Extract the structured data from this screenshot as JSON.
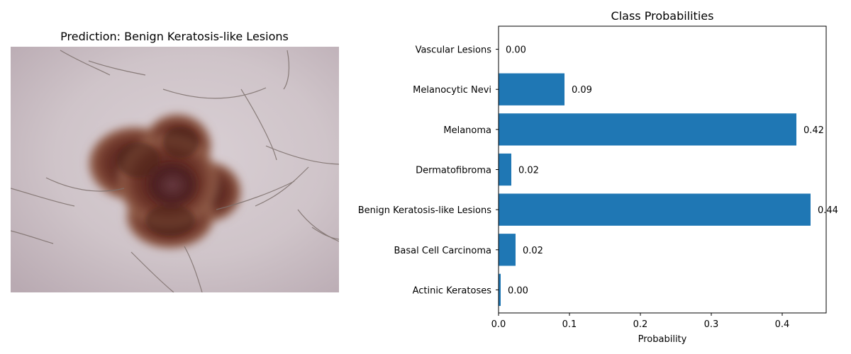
{
  "left_panel": {
    "title": "Prediction: Benign Keratosis-like Lesions",
    "image_icon": "dermoscopy-lesion-image"
  },
  "chart_data": {
    "type": "bar",
    "orientation": "horizontal",
    "title": "Class Probabilities",
    "xlabel": "Probability",
    "ylabel": "",
    "categories": [
      "Actinic Keratoses",
      "Basal Cell Carcinoma",
      "Benign Keratosis-like Lesions",
      "Dermatofibroma",
      "Melanoma",
      "Melanocytic Nevi",
      "Vascular Lesions"
    ],
    "values": [
      0.003,
      0.024,
      0.44,
      0.018,
      0.42,
      0.093,
      0.0
    ],
    "value_labels": [
      "0.00",
      "0.02",
      "0.44",
      "0.02",
      "0.42",
      "0.09",
      "0.00"
    ],
    "xlim": [
      0,
      0.462
    ],
    "xticks": [
      0.0,
      0.1,
      0.2,
      0.3,
      0.4
    ],
    "xtick_labels": [
      "0.0",
      "0.1",
      "0.2",
      "0.3",
      "0.4"
    ],
    "bar_color": "#1f77b4",
    "grid": false
  }
}
